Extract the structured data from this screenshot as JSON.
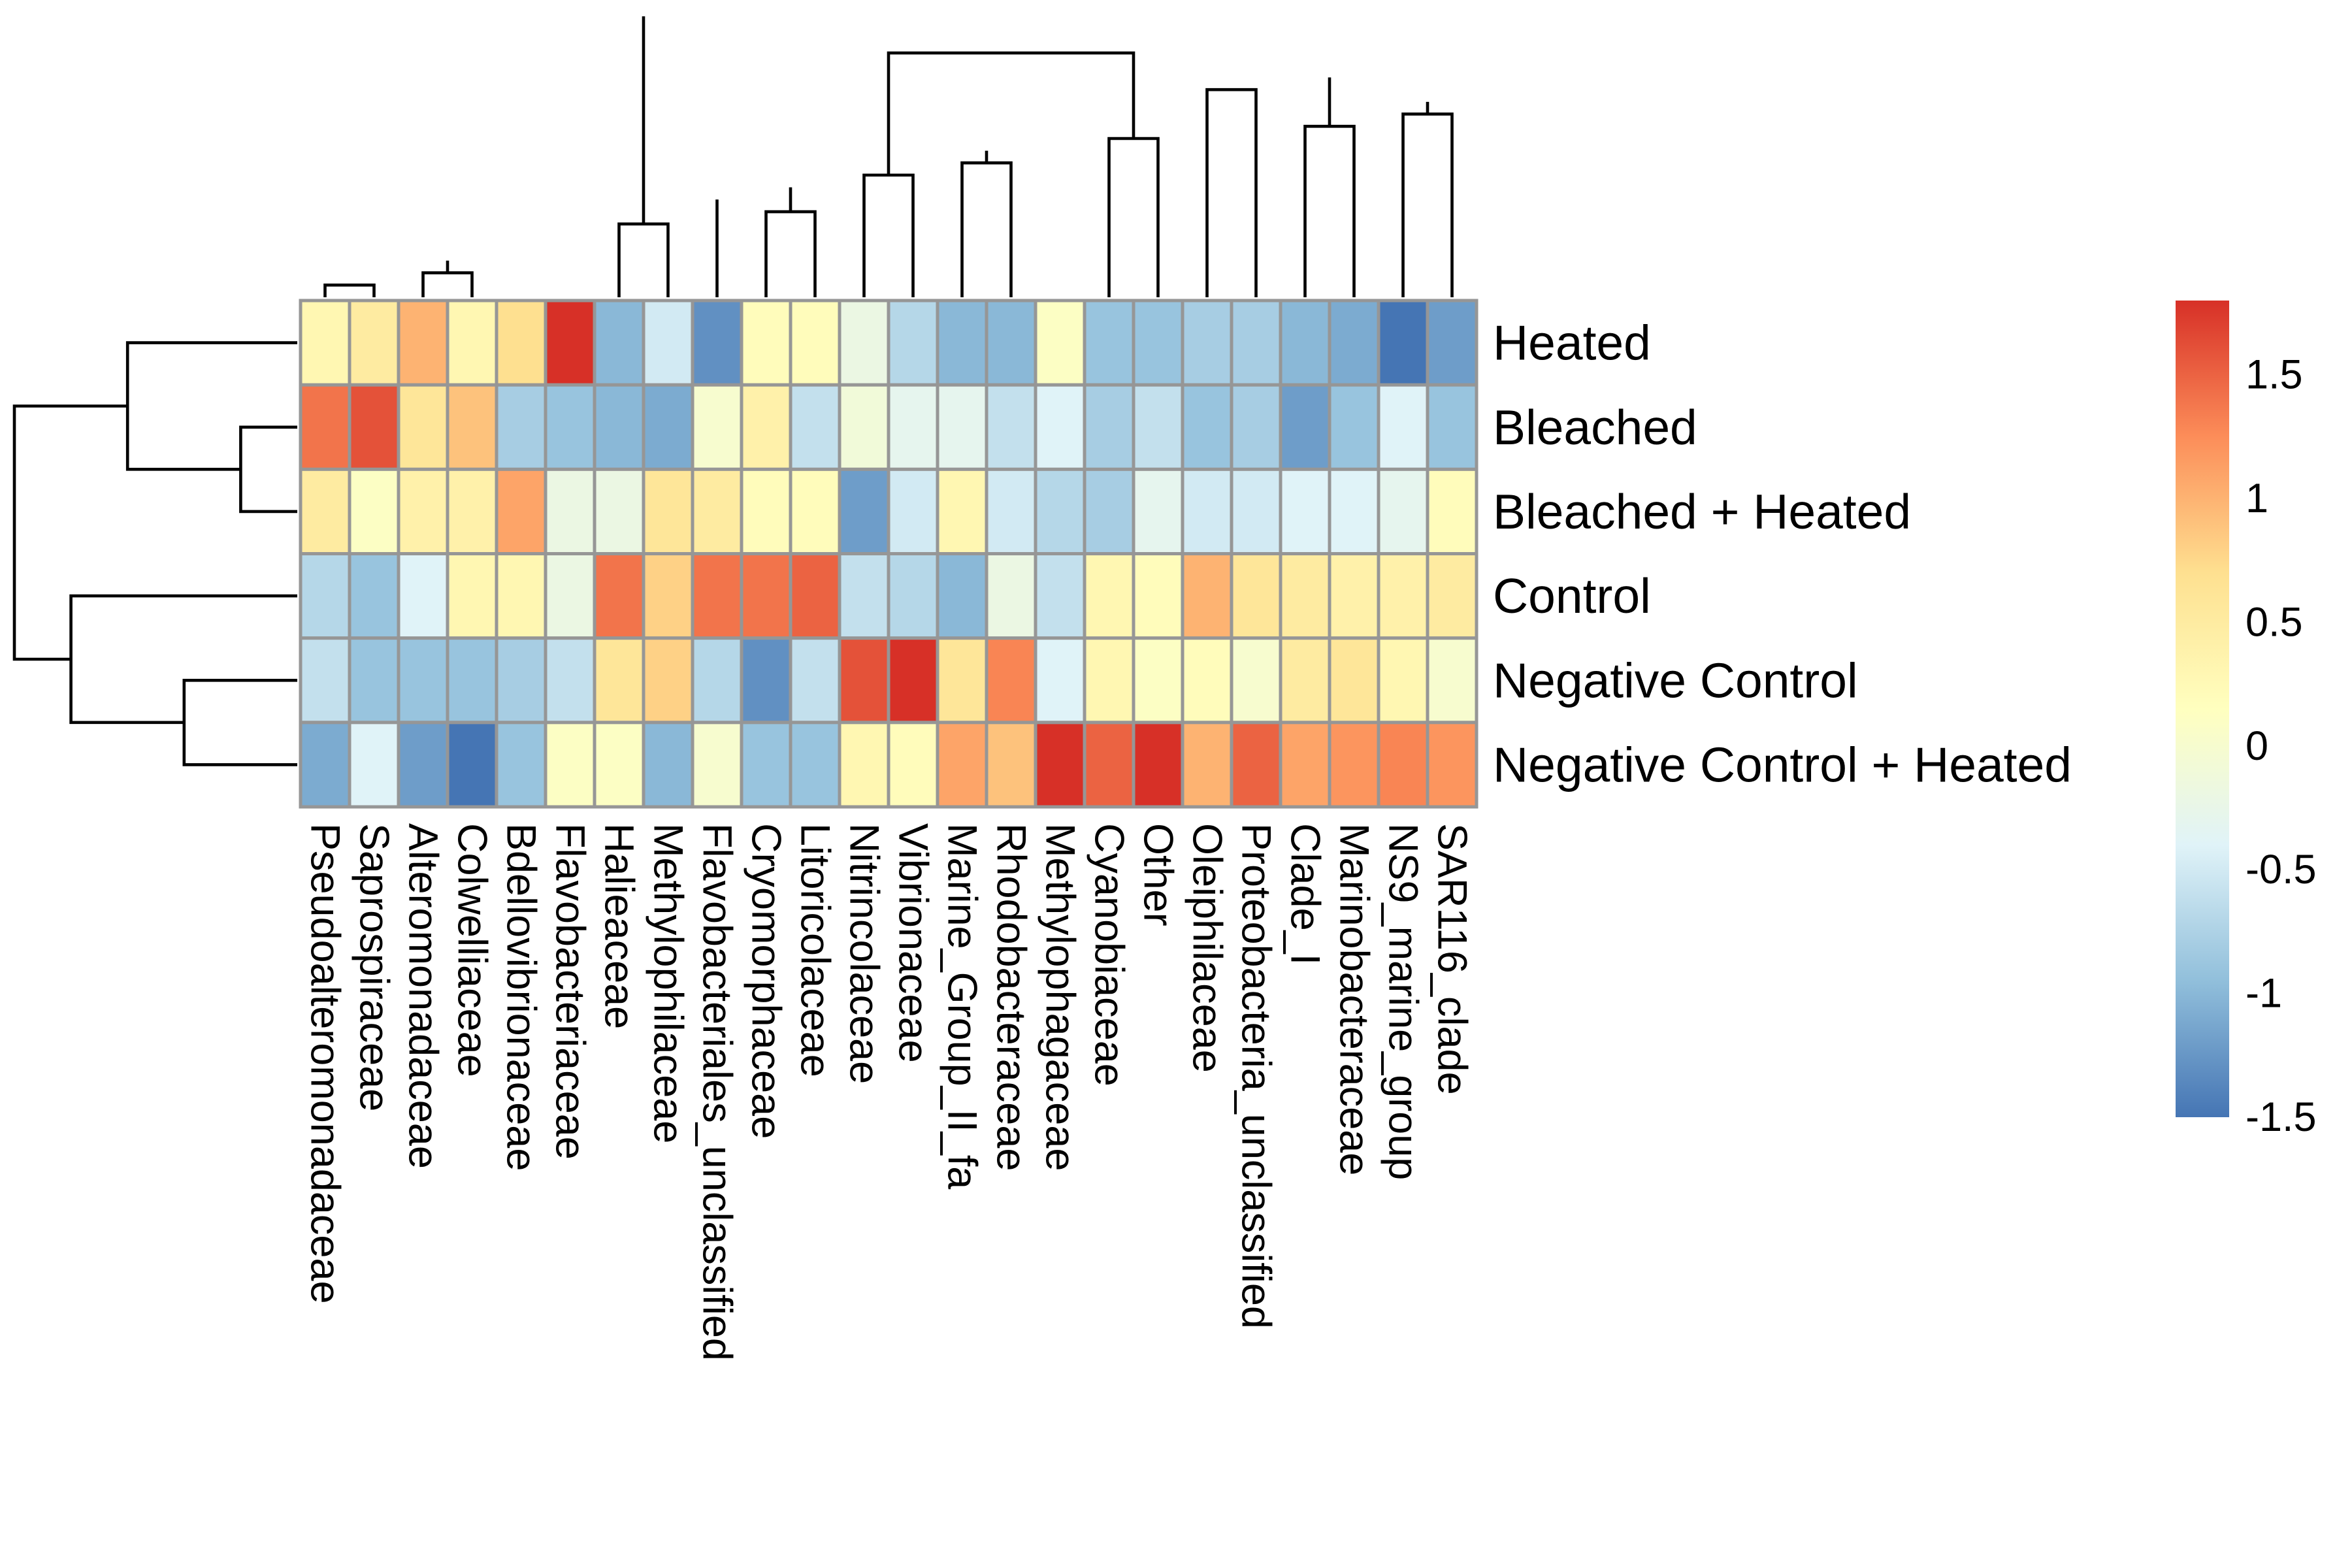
{
  "chart_data": {
    "type": "heatmap",
    "title": "",
    "rows": [
      "Heated",
      "Bleached",
      "Bleached + Heated",
      "Control",
      "Negative Control",
      "Negative Control + Heated"
    ],
    "columns": [
      "Pseudoalteromonadaceae",
      "Saprospiraceae",
      "Alteromonadaceae",
      "Colwelliaceae",
      "Bdellovibrionaceae",
      "Flavobacteriaceae",
      "Halieaceae",
      "Methylophilaceae",
      "Flavobacteriales_unclassified",
      "Cryomorphaceae",
      "Litoricolaceae",
      "Nitrincolaceae",
      "Vibrionaceae",
      "Marine_Group_II_fa",
      "Rhodobacteraceae",
      "Methylophagaceae",
      "Cyanobiaceae",
      "Other",
      "Oleiphilaceae",
      "Proteobacteria_unclassified",
      "Clade_I",
      "Marinobacteraceae",
      "NS9_marine_group",
      "SAR116_clade"
    ],
    "values": [
      [
        0.3,
        0.5,
        1.0,
        0.3,
        0.7,
        1.9,
        -1.0,
        -0.5,
        -1.3,
        0.2,
        0.2,
        -0.2,
        -0.7,
        -1.0,
        -1.0,
        0.1,
        -0.9,
        -0.9,
        -0.8,
        -0.8,
        -1.0,
        -1.1,
        -1.6,
        -1.2
      ],
      [
        1.4,
        1.6,
        0.6,
        0.9,
        -0.8,
        -0.9,
        -1.0,
        -1.1,
        0.0,
        0.4,
        -0.6,
        -0.1,
        -0.3,
        -0.3,
        -0.6,
        -0.4,
        -0.8,
        -0.6,
        -0.9,
        -0.8,
        -1.2,
        -0.9,
        -0.4,
        -0.9
      ],
      [
        0.5,
        0.1,
        0.4,
        0.4,
        1.1,
        -0.2,
        -0.2,
        0.6,
        0.5,
        0.2,
        0.2,
        -1.2,
        -0.5,
        0.3,
        -0.5,
        -0.7,
        -0.8,
        -0.3,
        -0.5,
        -0.5,
        -0.4,
        -0.4,
        -0.3,
        0.2
      ],
      [
        -0.7,
        -0.9,
        -0.4,
        0.3,
        0.3,
        -0.2,
        1.4,
        0.8,
        1.4,
        1.4,
        1.5,
        -0.6,
        -0.7,
        -1.0,
        -0.2,
        -0.6,
        0.3,
        0.2,
        1.0,
        0.6,
        0.5,
        0.4,
        0.4,
        0.5
      ],
      [
        -0.6,
        -0.9,
        -0.9,
        -0.9,
        -0.8,
        -0.6,
        0.6,
        0.8,
        -0.7,
        -1.3,
        -0.6,
        1.6,
        1.8,
        0.6,
        1.3,
        -0.4,
        0.3,
        0.1,
        0.2,
        0.0,
        0.5,
        0.6,
        0.3,
        0.0
      ],
      [
        -1.1,
        -0.4,
        -1.2,
        -1.6,
        -0.9,
        0.1,
        0.1,
        -1.0,
        0.0,
        -0.9,
        -0.9,
        0.3,
        0.2,
        1.1,
        0.9,
        1.9,
        1.5,
        1.8,
        1.0,
        1.5,
        1.1,
        1.2,
        1.3,
        1.2
      ]
    ],
    "legend": {
      "range": [
        -1.5,
        1.8
      ],
      "ticks": [
        "1.5",
        "1",
        "0.5",
        "0",
        "-0.5",
        "-1",
        "-1.5"
      ],
      "tick_values": [
        1.5,
        1.0,
        0.5,
        0.0,
        -0.5,
        -1.0,
        -1.5
      ],
      "colors": [
        "#4575B4",
        "#91BFDB",
        "#E0F3F8",
        "#FFFFBF",
        "#FEE090",
        "#FC8D59",
        "#D73027"
      ],
      "placement": "right"
    },
    "row_dendrogram": [
      [
        1,
        2
      ],
      [
        4,
        5
      ],
      [
        0,
        6
      ],
      [
        3,
        7
      ],
      [
        8,
        9
      ]
    ],
    "col_dendrogram": [
      [
        0,
        1
      ],
      [
        2,
        3
      ],
      [
        25,
        26
      ],
      [
        27,
        4
      ],
      [
        28,
        5
      ],
      [
        6,
        7
      ],
      [
        9,
        10
      ],
      [
        8,
        31
      ],
      [
        30,
        32
      ],
      [
        11,
        12
      ],
      [
        13,
        14
      ],
      [
        34,
        35
      ],
      [
        16,
        17
      ],
      [
        20,
        21
      ],
      [
        22,
        23
      ],
      [
        38,
        39
      ],
      [
        18,
        19
      ],
      [
        37,
        41
      ],
      [
        42,
        40
      ],
      [
        33,
        36
      ],
      [
        44,
        15
      ],
      [
        45,
        43
      ],
      [
        29,
        46
      ]
    ]
  }
}
